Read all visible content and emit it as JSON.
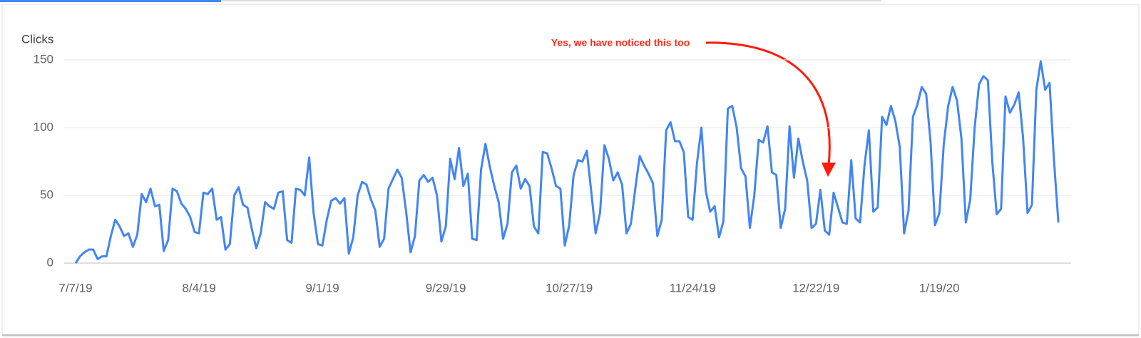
{
  "chart_data": {
    "type": "line",
    "y_label": "Clicks",
    "annotation": "Yes, we have noticed this too",
    "categories": [
      "7/7/19",
      null,
      null,
      null,
      null,
      null,
      null,
      null,
      null,
      null,
      null,
      null,
      null,
      null,
      null,
      null,
      null,
      null,
      null,
      null,
      null,
      null,
      null,
      null,
      null,
      null,
      null,
      null,
      "8/4/19",
      null,
      null,
      null,
      null,
      null,
      null,
      null,
      null,
      null,
      null,
      null,
      null,
      null,
      null,
      null,
      null,
      null,
      null,
      null,
      null,
      null,
      null,
      null,
      null,
      null,
      null,
      null,
      "9/1/19",
      null,
      null,
      null,
      null,
      null,
      null,
      null,
      null,
      null,
      null,
      null,
      null,
      null,
      null,
      null,
      null,
      null,
      null,
      null,
      null,
      null,
      null,
      null,
      null,
      null,
      null,
      null,
      "9/29/19",
      null,
      null,
      null,
      null,
      null,
      null,
      null,
      null,
      null,
      null,
      null,
      null,
      null,
      null,
      null,
      null,
      null,
      null,
      null,
      null,
      null,
      null,
      null,
      null,
      null,
      null,
      null,
      "10/27/19",
      null,
      null,
      null,
      null,
      null,
      null,
      null,
      null,
      null,
      null,
      null,
      null,
      null,
      null,
      null,
      null,
      null,
      null,
      null,
      null,
      null,
      null,
      null,
      null,
      null,
      null,
      null,
      "11/24/19",
      null,
      null,
      null,
      null,
      null,
      null,
      null,
      null,
      null,
      null,
      null,
      null,
      null,
      null,
      null,
      null,
      null,
      null,
      null,
      null,
      null,
      null,
      null,
      null,
      null,
      null,
      null,
      "12/22/19",
      null,
      null,
      null,
      null,
      null,
      null,
      null,
      null,
      null,
      null,
      null,
      null,
      null,
      null,
      null,
      null,
      null,
      null,
      null,
      null,
      null,
      null,
      null,
      null,
      null,
      null,
      null,
      "1/19/20",
      null,
      null,
      null,
      null,
      null,
      null,
      null,
      null,
      null,
      null,
      null,
      null,
      null,
      null,
      null,
      null,
      null,
      null,
      null,
      null,
      null,
      null,
      null,
      null,
      null,
      null,
      null
    ],
    "series": [
      {
        "name": "Clicks",
        "color": "#4285f4",
        "values": [
          0,
          5,
          8,
          10,
          10,
          3,
          5,
          5,
          20,
          32,
          27,
          20,
          22,
          12,
          21,
          51,
          45,
          55,
          42,
          43,
          9,
          17,
          55,
          53,
          44,
          40,
          34,
          23,
          22,
          52,
          51,
          55,
          32,
          34,
          10,
          14,
          50,
          56,
          43,
          41,
          25,
          11,
          22,
          45,
          42,
          40,
          52,
          53,
          17,
          15,
          55,
          54,
          50,
          78,
          37,
          14,
          13,
          32,
          46,
          48,
          44,
          48,
          7,
          19,
          50,
          60,
          58,
          47,
          39,
          12,
          18,
          55,
          62,
          69,
          63,
          38,
          8,
          20,
          61,
          65,
          60,
          63,
          50,
          16,
          27,
          77,
          62,
          85,
          57,
          66,
          18,
          17,
          69,
          88,
          71,
          57,
          45,
          18,
          29,
          67,
          72,
          55,
          62,
          57,
          27,
          22,
          82,
          81,
          70,
          57,
          55,
          13,
          28,
          65,
          76,
          75,
          83,
          53,
          22,
          37,
          87,
          77,
          61,
          67,
          58,
          22,
          29,
          55,
          79,
          72,
          66,
          59,
          20,
          32,
          98,
          104,
          90,
          90,
          82,
          34,
          32,
          74,
          100,
          53,
          38,
          42,
          19,
          31,
          114,
          116,
          100,
          70,
          64,
          26,
          50,
          91,
          89,
          101,
          67,
          65,
          26,
          40,
          101,
          63,
          92,
          75,
          61,
          26,
          29,
          54,
          24,
          21,
          52,
          41,
          30,
          29,
          76,
          33,
          30,
          72,
          98,
          38,
          41,
          108,
          102,
          116,
          105,
          86,
          22,
          39,
          108,
          117,
          130,
          125,
          89,
          28,
          37,
          88,
          116,
          130,
          120,
          92,
          30,
          47,
          100,
          132,
          138,
          135,
          75,
          36,
          40,
          123,
          111,
          117,
          126,
          92,
          37,
          43,
          128,
          149,
          128,
          133,
          76,
          30
        ]
      }
    ],
    "ylim": [
      0,
      150
    ],
    "yticks": [
      0,
      50,
      100,
      150
    ],
    "grid": true
  }
}
